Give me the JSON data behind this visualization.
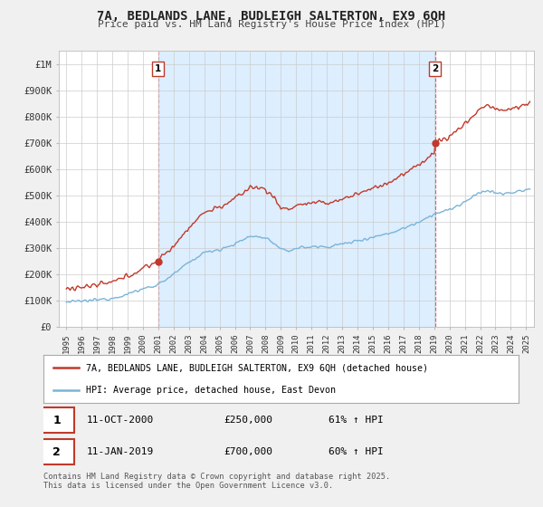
{
  "title": "7A, BEDLANDS LANE, BUDLEIGH SALTERTON, EX9 6QH",
  "subtitle": "Price paid vs. HM Land Registry's House Price Index (HPI)",
  "background_color": "#f0f0f0",
  "plot_background": "#ffffff",
  "shaded_color": "#ddeeff",
  "legend1": "7A, BEDLANDS LANE, BUDLEIGH SALTERTON, EX9 6QH (detached house)",
  "legend2": "HPI: Average price, detached house, East Devon",
  "marker1_date": "11-OCT-2000",
  "marker1_price": "£250,000",
  "marker1_hpi": "61% ↑ HPI",
  "marker2_date": "11-JAN-2019",
  "marker2_price": "£700,000",
  "marker2_hpi": "60% ↑ HPI",
  "footer": "Contains HM Land Registry data © Crown copyright and database right 2025.\nThis data is licensed under the Open Government Licence v3.0.",
  "sale1_x": 2001.0,
  "sale1_y": 250000,
  "sale2_x": 2019.05,
  "sale2_y": 700000,
  "hpi_color": "#7ab4d8",
  "price_color": "#c0392b",
  "vline_color": "#e05050",
  "xlabel_color": "#333333",
  "ylabel_color": "#333333",
  "ylim": [
    0,
    1050000
  ],
  "xlim": [
    1994.5,
    2025.5
  ]
}
